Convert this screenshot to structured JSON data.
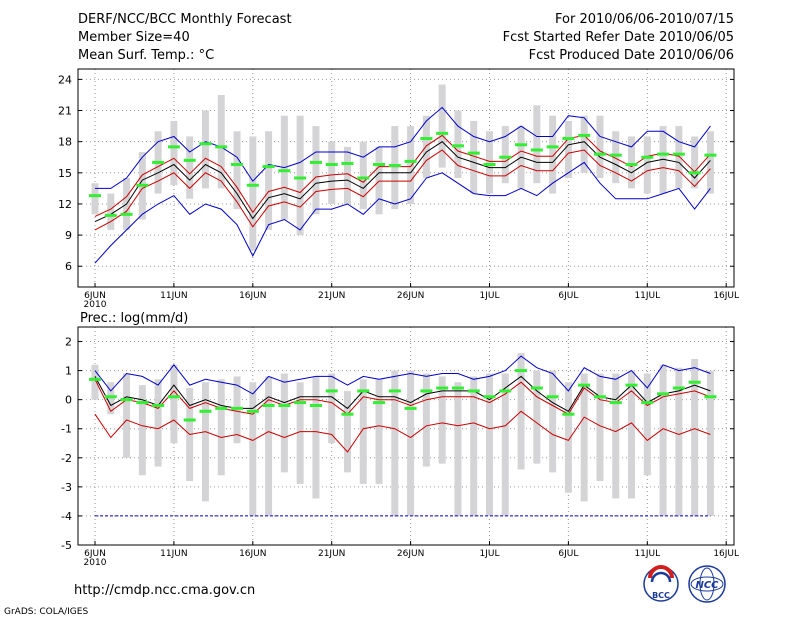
{
  "header": {
    "title": "DERF/NCC/BCC Monthly Forecast",
    "member_size": "Member Size=40",
    "variable": "Mean Surf. Temp.: °C",
    "period": "For 2010/06/06-2010/07/15",
    "refer_date": "Fcst Started Refer Date 2010/06/05",
    "produced_date": "Fcst Produced Date 2010/06/06"
  },
  "footer": {
    "url": "http://cmdp.ncc.cma.gov.cn",
    "grads": "GrADS: COLA/IGES",
    "logo_bcc": "BCC",
    "logo_ncc": "NCC"
  },
  "colors": {
    "bar": "#d4d4d6",
    "green": "#33ee33",
    "blue": "#0000cc",
    "red": "#cc0000",
    "black": "#000000",
    "dot": "#999999"
  },
  "x_axis": {
    "ticks": [
      "6JUN",
      "11JUN",
      "16JUN",
      "21JUN",
      "26JUN",
      "1JUL",
      "6JUL",
      "11JUL",
      "16JUL"
    ],
    "tick_days": [
      0,
      5,
      10,
      15,
      20,
      25,
      30,
      35,
      40
    ],
    "year_label": "2010"
  },
  "chart_data": [
    {
      "type": "line",
      "title": "Mean Surf. Temp.: °C",
      "ylim": [
        4,
        25
      ],
      "yticks": [
        6,
        9,
        12,
        15,
        18,
        21,
        24
      ],
      "x": [
        0,
        1,
        2,
        3,
        4,
        5,
        6,
        7,
        8,
        9,
        10,
        11,
        12,
        13,
        14,
        15,
        16,
        17,
        18,
        19,
        20,
        21,
        22,
        23,
        24,
        25,
        26,
        27,
        28,
        29,
        30,
        31,
        32,
        33,
        34,
        35,
        36,
        37,
        38,
        39
      ],
      "bars": {
        "low": [
          11,
          9.5,
          9.5,
          10.5,
          13,
          13.8,
          12.5,
          13.5,
          13.5,
          11.5,
          7.5,
          9.5,
          10.5,
          9,
          11,
          12,
          12,
          11.5,
          11,
          11.5,
          12,
          14.5,
          15.5,
          14.5,
          13,
          13,
          14,
          13.5,
          14,
          13,
          14.5,
          15,
          14.5,
          14,
          13.5,
          13,
          13,
          13.5,
          13.5,
          13
        ],
        "high": [
          14,
          13,
          14.5,
          17,
          19,
          20,
          18.5,
          21,
          22.5,
          19,
          18.5,
          19,
          20.5,
          20.5,
          19.5,
          18,
          17.5,
          18,
          17.5,
          19.5,
          19.5,
          20.5,
          23.5,
          21,
          20,
          19,
          19.5,
          19.5,
          21.5,
          20.5,
          20,
          20.5,
          20.5,
          19,
          18.5,
          18.5,
          19.5,
          19.5,
          18.5,
          19
        ]
      },
      "series": [
        {
          "name": "green",
          "values": [
            12.8,
            10.9,
            11,
            13.8,
            16,
            17.5,
            16.2,
            17.8,
            17.5,
            15.8,
            13.8,
            15.6,
            15.2,
            14.5,
            16,
            15.8,
            15.9,
            14.5,
            15.8,
            15.7,
            16.1,
            18.3,
            18.8,
            17.6,
            16.9,
            15.8,
            16.5,
            17.7,
            17.2,
            17.5,
            18.3,
            18.6,
            16.8,
            16.7,
            15.8,
            16.5,
            16.8,
            16.8,
            15,
            16.7
          ]
        },
        {
          "name": "blue_high",
          "values": [
            13.5,
            13.5,
            14.5,
            16.5,
            18,
            18.5,
            17,
            18,
            17.5,
            16.5,
            14.2,
            15.8,
            15.5,
            16,
            17,
            17,
            17,
            16.5,
            17.5,
            17.5,
            18,
            20,
            21.3,
            19.5,
            18.5,
            18,
            18.5,
            19.5,
            18.5,
            18.5,
            20.5,
            20.3,
            18.5,
            18,
            17.5,
            19,
            19,
            18,
            17.5,
            19.5
          ]
        },
        {
          "name": "blue_low",
          "values": [
            6.3,
            8,
            9.5,
            11,
            12,
            12.8,
            11,
            12,
            11.5,
            10,
            7,
            10,
            10.5,
            9.5,
            11.5,
            11.5,
            12,
            11,
            12.5,
            12,
            12.5,
            14.5,
            15,
            14,
            13,
            12.8,
            12.8,
            13.5,
            12.8,
            14,
            15,
            16,
            14,
            12.5,
            12.5,
            12.5,
            13,
            13.5,
            11.5,
            13.5
          ]
        },
        {
          "name": "black_mean",
          "values": [
            10.3,
            11,
            12,
            14.3,
            15,
            15.8,
            14.3,
            15.8,
            15,
            13,
            10.6,
            12.6,
            13,
            12.5,
            14,
            14.2,
            14.3,
            13.5,
            15,
            15,
            15,
            17,
            18,
            16.5,
            16,
            15.5,
            15.5,
            16.5,
            16,
            16,
            17.7,
            18,
            16.5,
            15.8,
            15,
            16,
            16.3,
            16,
            14.5,
            16.2
          ]
        },
        {
          "name": "red_high",
          "values": [
            10.8,
            11.5,
            12.7,
            14.8,
            15.6,
            16.4,
            14.9,
            16.4,
            15.6,
            13.6,
            11.2,
            13.2,
            13.6,
            13.1,
            14.6,
            14.8,
            14.9,
            14.1,
            15.6,
            15.6,
            15.6,
            17.6,
            18.6,
            17.1,
            16.6,
            16.1,
            16.1,
            17.1,
            16.6,
            16.6,
            18.3,
            18.6,
            17.1,
            16.4,
            15.6,
            16.6,
            16.9,
            16.6,
            15.1,
            16.8
          ]
        },
        {
          "name": "red_low",
          "values": [
            9.5,
            10.3,
            11.3,
            13.5,
            14.2,
            15,
            13.5,
            15,
            14.2,
            12.2,
            9.8,
            11.8,
            12.2,
            11.7,
            13.2,
            13.4,
            13.5,
            12.7,
            14.2,
            14.2,
            14.2,
            16.2,
            17.2,
            15.7,
            15.2,
            14.7,
            14.7,
            15.7,
            15.2,
            15.2,
            16.9,
            17.2,
            15.7,
            15,
            14.2,
            15.2,
            15.5,
            15.2,
            13.7,
            15.4
          ]
        }
      ]
    },
    {
      "type": "line",
      "title": "Prec.: log(mm/d)",
      "ylim": [
        -5,
        2.5
      ],
      "yticks": [
        -5,
        -4,
        -3,
        -2,
        -1,
        0,
        1,
        2
      ],
      "x": [
        0,
        1,
        2,
        3,
        4,
        5,
        6,
        7,
        8,
        9,
        10,
        11,
        12,
        13,
        14,
        15,
        16,
        17,
        18,
        19,
        20,
        21,
        22,
        23,
        24,
        25,
        26,
        27,
        28,
        29,
        30,
        31,
        32,
        33,
        34,
        35,
        36,
        37,
        38,
        39
      ],
      "floor_line": -4,
      "bars": {
        "low": [
          0,
          -0.5,
          -2,
          -2.6,
          -2.3,
          -1.5,
          -2.8,
          -3.5,
          -2.6,
          -1.5,
          -4,
          -4,
          -2.5,
          -2.9,
          -3.4,
          -1.5,
          -2.5,
          -2.9,
          -2.9,
          -4,
          -4,
          -2.3,
          -2.2,
          -4,
          -4,
          -4,
          -4,
          -2.4,
          -2.2,
          -2.5,
          -3.2,
          -3.5,
          -2.8,
          -3.4,
          -3.4,
          -2.6,
          -4,
          -4,
          -4,
          -4
        ],
        "high": [
          1.2,
          0.6,
          0.9,
          0.5,
          0.7,
          1.2,
          0.4,
          0.6,
          0.7,
          0.8,
          0.6,
          0.8,
          0.9,
          0.6,
          0.8,
          0.9,
          0.3,
          0.7,
          0.7,
          1,
          1,
          0.9,
          0.8,
          0.6,
          0.8,
          0.9,
          0.9,
          1.6,
          1,
          1,
          0.6,
          0.9,
          0.9,
          0.9,
          1,
          0.9,
          1.2,
          1.1,
          1.4,
          1
        ]
      },
      "series": [
        {
          "name": "green",
          "values": [
            0.7,
            0.1,
            0,
            -0.1,
            -0.2,
            0.1,
            -0.7,
            -0.4,
            -0.3,
            -0.3,
            -0.4,
            -0.2,
            -0.2,
            -0.1,
            -0.2,
            0.3,
            -0.5,
            0.3,
            -0.1,
            0.3,
            -0.3,
            0.3,
            0.4,
            0.4,
            0.3,
            0.1,
            0.3,
            1,
            0.4,
            0.1,
            -0.5,
            0.5,
            0.1,
            -0.1,
            0.5,
            -0.1,
            0.2,
            0.4,
            0.6,
            0.1
          ]
        },
        {
          "name": "blue_high",
          "values": [
            1,
            0.3,
            0.9,
            0.8,
            0.5,
            1.2,
            0.5,
            0.7,
            0.6,
            0.5,
            0.2,
            0.8,
            0.6,
            0.7,
            0.8,
            0.8,
            0.5,
            0.8,
            0.7,
            0.8,
            0.9,
            0.8,
            0.9,
            0.9,
            0.7,
            0.8,
            1,
            1.5,
            1.1,
            0.9,
            0.3,
            1.1,
            0.8,
            0.7,
            1,
            0.4,
            1.2,
            1,
            1.1,
            0.9
          ]
        },
        {
          "name": "black_mean",
          "values": [
            0.8,
            -0.2,
            0.1,
            0,
            -0.2,
            0.5,
            -0.2,
            0,
            -0.2,
            -0.3,
            -0.3,
            0.1,
            -0.1,
            0.1,
            0.1,
            0.1,
            -0.3,
            0.3,
            0.1,
            0.1,
            -0.1,
            0.2,
            0.3,
            0.3,
            0.3,
            0,
            0.4,
            0.8,
            0.3,
            -0.1,
            -0.4,
            0.5,
            0.1,
            0,
            0.5,
            -0.1,
            0.2,
            0.3,
            0.5,
            0.3
          ]
        },
        {
          "name": "red_high",
          "values": [
            0.7,
            -0.4,
            0,
            -0.1,
            -0.3,
            0.3,
            -0.3,
            -0.1,
            -0.3,
            -0.4,
            -0.5,
            0,
            -0.2,
            0,
            0,
            -0.1,
            -0.5,
            0.1,
            0,
            0,
            -0.2,
            0,
            0.1,
            0.1,
            0.1,
            -0.1,
            0.2,
            0.6,
            0.1,
            -0.2,
            -0.5,
            0.4,
            0,
            -0.1,
            0.3,
            -0.2,
            0.1,
            0.2,
            0.3,
            0.1
          ]
        },
        {
          "name": "red_low",
          "values": [
            -0.5,
            -1.3,
            -0.7,
            -0.9,
            -1,
            -0.7,
            -1.2,
            -1.1,
            -1.3,
            -1.2,
            -1.4,
            -1.1,
            -1.3,
            -1.1,
            -1.1,
            -1.2,
            -1.8,
            -1,
            -0.9,
            -1,
            -1.3,
            -0.9,
            -0.8,
            -0.9,
            -0.8,
            -1,
            -0.9,
            -0.4,
            -0.8,
            -1.2,
            -1.4,
            -0.6,
            -0.9,
            -1.1,
            -0.8,
            -1.4,
            -1,
            -1.2,
            -1,
            -1.2
          ]
        }
      ]
    }
  ]
}
